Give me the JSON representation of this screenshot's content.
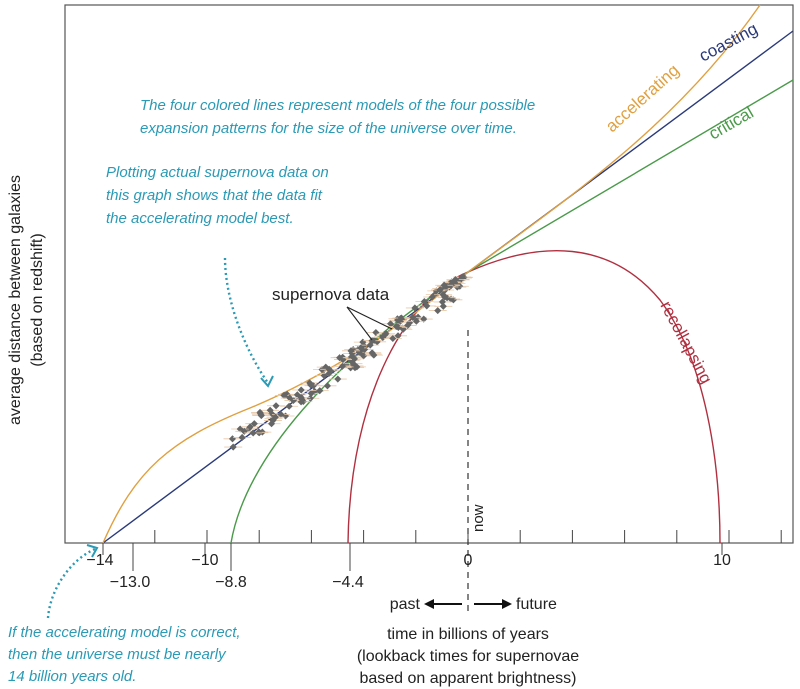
{
  "notes": {
    "models": [
      "The four colored lines represent models of the four possible",
      "expansion patterns for the size of the universe over time."
    ],
    "supernova": [
      "Plotting actual supernova data on",
      "this graph shows that the data fit",
      "the accelerating model best."
    ],
    "age": [
      "If the accelerating model is correct,",
      "then the universe must be nearly",
      "14 billion years old."
    ]
  },
  "supernova_label": "supernova data",
  "now_label": "now",
  "past_label": "past",
  "future_label": "future",
  "y_axis": [
    "average distance between galaxies",
    "(based on redshift)"
  ],
  "x_axis": [
    "time in billions of years",
    "(lookback times for supernovae",
    "based on apparent brightness)"
  ],
  "chart_data": {
    "type": "line",
    "models": [
      {
        "name": "accelerating",
        "color": "#e0a040",
        "start_time": -14
      },
      {
        "name": "coasting",
        "color": "#2a3a7a",
        "start_time": -13.0
      },
      {
        "name": "critical",
        "color": "#4a9a4a",
        "start_time": -8.8
      },
      {
        "name": "recollapsing",
        "color": "#b03040",
        "start_time": -4.4,
        "end_time": 10
      }
    ],
    "x_ticks_major": [
      "−14",
      "−10",
      "0",
      "10"
    ],
    "x_ticks_model": [
      "−13.0",
      "−8.8",
      "−4.4"
    ],
    "tick_step_years": 2
  }
}
